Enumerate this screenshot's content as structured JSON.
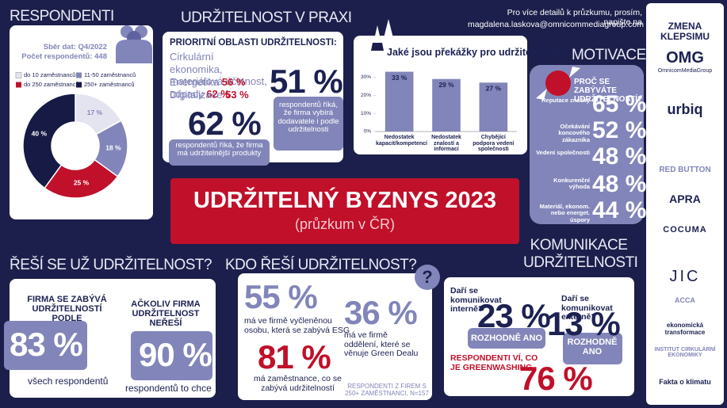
{
  "header": {
    "respondents_title": "RESPONDENTI",
    "practice_title": "UDRŽITELNOST V PRAXI",
    "contact_text": "Pro více detailů k průzkumu, prosím, napište na",
    "contact_email": "magdalena.laskova@omnicommediagroup.com"
  },
  "respondents": {
    "collection": "Sběr dat: Q4/2022",
    "count": "Počet respondentů: 448"
  },
  "chart_data": [
    {
      "type": "pie",
      "categories": [
        "do 10 zaměstnanců",
        "11-50 zaměstnanců",
        "do 250 zaměstnanců",
        "250+ zaměstnanců"
      ],
      "values": [
        17,
        18,
        25,
        40
      ],
      "value_labels": [
        "17 %",
        "18 %",
        "25 %",
        "40 %"
      ],
      "colors": [
        "#e4e4f1",
        "#8285b9",
        "#c0102a",
        "#161a44"
      ],
      "donut": true
    },
    {
      "type": "bar",
      "title": "Jaké jsou překážky pro udržitelnost?",
      "categories": [
        "Nedostatek kapacit/kompetencí",
        "Nedostatek znalostí a informací",
        "Chybějící podpora vedení společnosti"
      ],
      "values": [
        33,
        29,
        27
      ],
      "value_labels": [
        "33 %",
        "29 %",
        "27 %"
      ],
      "color": "#8285b9",
      "ylim": [
        0,
        35
      ],
      "yticks": [
        {
          "value": 0,
          "label": "0%"
        },
        {
          "value": 10,
          "label": "10%"
        },
        {
          "value": 20,
          "label": "20%"
        },
        {
          "value": 30,
          "label": "30%"
        }
      ],
      "grid": false
    }
  ],
  "practice": {
    "heading": "PRIORITNÍ OBLASTI UDRŽITELNOSTI:",
    "areas": [
      {
        "label": "Cirkulární ekonomika, materiálová účinnost, odpady",
        "value": "62 %"
      },
      {
        "label": "Energetika",
        "value": "56 %"
      },
      {
        "label": "Digitalizace",
        "value": "53 %"
      }
    ],
    "stats": [
      {
        "value": "51 %",
        "text": "respondentů říká, že firma vybírá dodavatele i podle udržitelnosti"
      },
      {
        "value": "62 %",
        "text": "respondentů říká, že firma má udržitelnější produkty"
      }
    ]
  },
  "motivation": {
    "title": "MOTIVACE",
    "question": "PROČ SE ZABÝVÁTE UDRŽITELNOSTÍ?",
    "items": [
      {
        "label": "Reputace značky",
        "value": "65 %"
      },
      {
        "label": "Očekávání koncového zákazníka",
        "value": "52 %"
      },
      {
        "label": "Vedení společnosti",
        "value": "48 %"
      },
      {
        "label": "Konkurenční výhoda",
        "value": "48 %"
      },
      {
        "label": "Materiál, ekonom. nebo energet. úspory",
        "value": "44 %"
      }
    ]
  },
  "banner": {
    "title": "UDRŽITELNÝ BYZNYS 2023",
    "subtitle": "(průzkum v ČR)"
  },
  "already": {
    "title": "ŘEŠÍ SE UŽ UDRŽITELNOST?",
    "left_text": "FIRMA SE ZABÝVÁ UDRŽITELNOSTÍ PODLE",
    "left_value": "83 %",
    "left_note": "všech respondentů",
    "right_text": "AČKOLIV FIRMA UDRŽITELNOST NEŘEŠÍ",
    "right_value": "90 %",
    "right_note": "respondentů to chce"
  },
  "who": {
    "title": "KDO ŘEŠÍ UDRŽITELNOST?",
    "mark": "?",
    "stats": [
      {
        "value": "55 %",
        "text": "má ve firmě vyčleněnou osobu, která se zabývá ESG"
      },
      {
        "value": "36 %",
        "text": "má ve firmě oddělení, které se věnuje Green Dealu"
      },
      {
        "value": "81 %",
        "text": "má zaměstnance, co se zabývá udržitelností"
      }
    ],
    "footnote": "RESPONDENTI Z FIREM S 250+ ZAMĚSTNANCI, N=157"
  },
  "communication": {
    "title_1": "KOMUNIKACE",
    "title_2": "UDRŽITELNOSTI",
    "internal_q": "Daří se komunikovat interně?",
    "internal_value": "23 %",
    "internal_answer": "ROZHODNĚ ANO",
    "external_q": "Daří se komunikovat externě?",
    "external_value": "13 %",
    "external_answer": "ROZHODNĚ ANO",
    "greenwashing_text": "RESPONDENTI VÍ, CO JE GREENWASHING",
    "greenwashing_value": "76 %"
  },
  "partners": [
    "ZMENA",
    "KLEPSIMU",
    "OMG",
    "OmnicomMediaGroup",
    "urbiq",
    "RED BUTTON",
    "APRA",
    "COCUMA",
    "JIC",
    "ACCA",
    "ekonomická transformace",
    "INSTITUT CIRKULÁRNÍ EKONOMIKY",
    "Fakta o klimatu"
  ]
}
